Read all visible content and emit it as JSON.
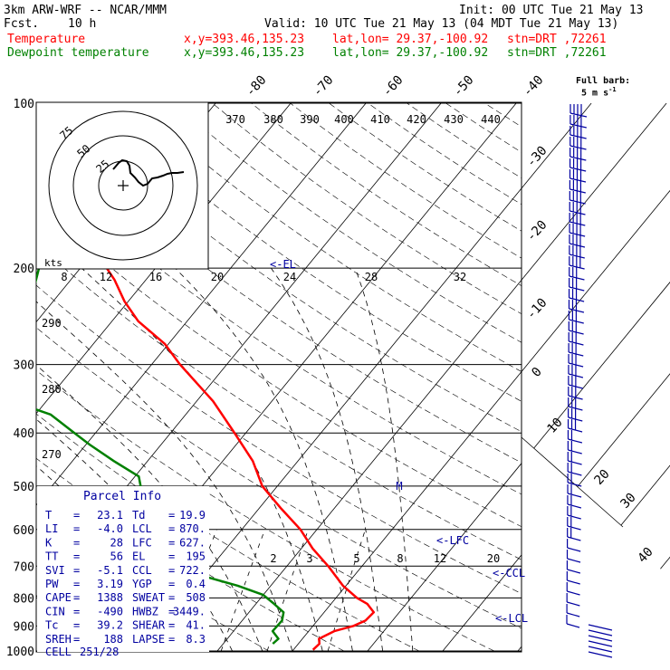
{
  "header": {
    "model": "3km ARW-WRF -- NCAR/MMM",
    "init": "Init: 00 UTC Tue 21 May 13",
    "fcst_label": "Fcst.",
    "fcst_value": "10 h",
    "valid": "Valid: 10 UTC Tue 21 May 13 (04 MDT Tue 21 May 13)",
    "lines": [
      {
        "name": "Temperature",
        "xy": "x,y=393.46,135.23",
        "latlon": "lat,lon= 29.37,-100.92",
        "stn": "stn=DRT ,72261",
        "color": "#ff0000"
      },
      {
        "name": "Dewpoint temperature",
        "xy": "x,y=393.46,135.23",
        "latlon": "lat,lon= 29.37,-100.92",
        "stn": "stn=DRT ,72261",
        "color": "#008000"
      }
    ],
    "full_barb": "Full barb:",
    "full_barb_units": "5 m s",
    "full_barb_exp": "-1"
  },
  "chart_data": {
    "type": "line",
    "title": "",
    "xlabel": "",
    "ylabel": "",
    "pressure_ticks": [
      100,
      200,
      300,
      400,
      500,
      600,
      700,
      800,
      900,
      1000
    ],
    "ylim": [
      1000,
      100
    ],
    "xlim_temp_at_1000hPa": [
      -18,
      42
    ],
    "isotherm_labels": [
      -80,
      -70,
      -60,
      -50,
      -40,
      -30,
      -20,
      -10,
      0,
      10,
      20,
      30,
      40
    ],
    "theta_labels_top": [
      370,
      380,
      390,
      400,
      410,
      420,
      430,
      440
    ],
    "theta_labels_left": [
      290,
      280,
      270
    ],
    "mixing_ratio_labels": [
      2,
      3,
      5,
      8,
      12,
      20
    ],
    "el_label": "<-EL",
    "lfc_label": "<-LFC",
    "ccl_label": "<-CCL",
    "lcl_label": "<-LCL",
    "lfc_marker": "M",
    "series": [
      {
        "name": "Temperature",
        "color": "#ff0000",
        "points": [
          [
            995,
            22.6
          ],
          [
            970,
            22.8
          ],
          [
            950,
            22.2
          ],
          [
            920,
            23.4
          ],
          [
            900,
            25.4
          ],
          [
            880,
            26.4
          ],
          [
            850,
            26.6
          ],
          [
            820,
            24.8
          ],
          [
            800,
            22.8
          ],
          [
            760,
            19.6
          ],
          [
            700,
            15.5
          ],
          [
            650,
            11.5
          ],
          [
            600,
            7.8
          ],
          [
            550,
            3.0
          ],
          [
            500,
            -2.0
          ],
          [
            450,
            -6.0
          ],
          [
            400,
            -11.5
          ],
          [
            350,
            -17.8
          ],
          [
            300,
            -26.2
          ],
          [
            275,
            -30.5
          ],
          [
            250,
            -36.5
          ],
          [
            230,
            -40.5
          ],
          [
            210,
            -44.2
          ],
          [
            200,
            -46.5
          ],
          [
            185,
            -50.8
          ],
          [
            170,
            -52.8
          ],
          [
            150,
            -56.5
          ],
          [
            130,
            -61.5
          ],
          [
            115,
            -65.5
          ],
          [
            105,
            -66.5
          ],
          [
            100,
            -67.5
          ]
        ]
      },
      {
        "name": "Dewpoint temperature",
        "color": "#008000",
        "points": [
          [
            970,
            16.6
          ],
          [
            950,
            16.8
          ],
          [
            920,
            15.2
          ],
          [
            880,
            15.3
          ],
          [
            850,
            14.6
          ],
          [
            820,
            12.4
          ],
          [
            790,
            10.0
          ],
          [
            760,
            5.6
          ],
          [
            730,
            0.0
          ],
          [
            700,
            -5.0
          ],
          [
            680,
            -8.8
          ],
          [
            640,
            -9.8
          ],
          [
            610,
            -10.5
          ],
          [
            575,
            -13.2
          ],
          [
            540,
            -15.5
          ],
          [
            500,
            -18.2
          ],
          [
            480,
            -19.5
          ],
          [
            450,
            -24.5
          ],
          [
            420,
            -29.5
          ],
          [
            400,
            -32.8
          ],
          [
            370,
            -38.0
          ],
          [
            350,
            -44.5
          ],
          [
            325,
            -47.5
          ],
          [
            300,
            -47.0
          ],
          [
            250,
            -51.5
          ],
          [
            200,
            -55.5
          ],
          [
            175,
            -64.5
          ],
          [
            160,
            -70.5
          ],
          [
            150,
            -76.5
          ],
          [
            130,
            -78.5
          ],
          [
            115,
            -79.5
          ],
          [
            100,
            -81.0
          ]
        ]
      }
    ]
  },
  "hodograph": {
    "units_label": "kts",
    "ring_labels": [
      "75",
      "50",
      "25"
    ],
    "speed_ticks": [
      "8",
      "12",
      "16",
      "20",
      "24",
      "28",
      "32"
    ]
  },
  "parcel_info": {
    "title": "Parcel Info",
    "rows": [
      {
        "l1": "T",
        "v1": "23.1",
        "l2": "Td",
        "v2": "19.9"
      },
      {
        "l1": "LI",
        "v1": "-4.0",
        "l2": "LCL",
        "v2": "870."
      },
      {
        "l1": "K",
        "v1": "28",
        "l2": "LFC",
        "v2": "627."
      },
      {
        "l1": "TT",
        "v1": "56",
        "l2": "EL",
        "v2": "195"
      },
      {
        "l1": "SVI",
        "v1": "-5.1",
        "l2": "CCL",
        "v2": "722."
      },
      {
        "l1": "PW",
        "v1": "3.19",
        "l2": "YGP",
        "v2": "0.4"
      },
      {
        "l1": "CAPE",
        "v1": "1388",
        "l2": "SWEAT",
        "v2": "508"
      },
      {
        "l1": "CIN",
        "v1": "-490",
        "l2": "HWBZ",
        "v2": "3449."
      },
      {
        "l1": "Tc",
        "v1": "39.2",
        "l2": "SHEAR",
        "v2": "41."
      },
      {
        "l1": "SREH",
        "v1": "188",
        "l2": "LAPSE",
        "v2": "8.3"
      }
    ],
    "cell_label": "CELL",
    "cell_value": "251/28"
  }
}
